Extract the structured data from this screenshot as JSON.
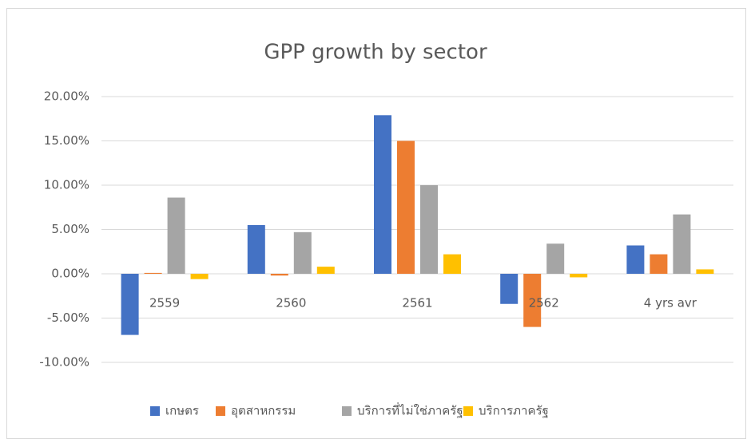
{
  "chart_data": {
    "type": "bar",
    "title": "GPP growth by sector",
    "categories": [
      "2559",
      "2560",
      "2561",
      "2562",
      "4 yrs avr"
    ],
    "series": [
      {
        "name": "เกษตร",
        "color": "#4472c4",
        "values": [
          -6.9,
          5.5,
          17.9,
          -3.4,
          3.2
        ]
      },
      {
        "name": "อุตสาหกรรม",
        "color": "#ed7d31",
        "values": [
          0.1,
          -0.2,
          15.0,
          -6.0,
          2.2
        ]
      },
      {
        "name": "บริการที่ไม่ใช่ภาครัฐ",
        "color": "#a5a5a5",
        "values": [
          8.6,
          4.7,
          10.0,
          3.4,
          6.7
        ]
      },
      {
        "name": "บริการภาครัฐ",
        "color": "#ffc000",
        "values": [
          -0.6,
          0.8,
          2.2,
          -0.4,
          0.5
        ]
      }
    ],
    "ylim": [
      -10,
      20
    ],
    "yticks": [
      {
        "value": -10,
        "label": "-10.00%"
      },
      {
        "value": -5,
        "label": "-5.00%"
      },
      {
        "value": 0,
        "label": "0.00%"
      },
      {
        "value": 5,
        "label": "5.00%"
      },
      {
        "value": 10,
        "label": "10.00%"
      },
      {
        "value": 15,
        "label": "15.00%"
      },
      {
        "value": 20,
        "label": "20.00%"
      }
    ],
    "grid": true,
    "legend": "bottom"
  }
}
